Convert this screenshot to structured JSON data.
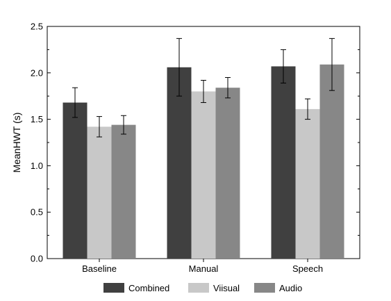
{
  "chart_data": {
    "type": "bar",
    "categories": [
      "Baseline",
      "Manual",
      "Speech"
    ],
    "series": [
      {
        "name": "Combined",
        "color": "#404040",
        "values": [
          1.68,
          2.06,
          2.07
        ],
        "errors": [
          0.16,
          0.31,
          0.18
        ]
      },
      {
        "name": "Viisual",
        "color": "#c8c8c8",
        "values": [
          1.42,
          1.8,
          1.61
        ],
        "errors": [
          0.11,
          0.12,
          0.11
        ]
      },
      {
        "name": "Audio",
        "color": "#878787",
        "values": [
          1.44,
          1.84,
          2.09
        ],
        "errors": [
          0.1,
          0.11,
          0.28
        ]
      }
    ],
    "title": "",
    "xlabel": "",
    "ylabel": "MeanHWT (s)",
    "ylim": [
      0,
      2.5
    ],
    "yticks": [
      "0.0",
      "0.5",
      "1.0",
      "1.5",
      "2.0",
      "2.5"
    ],
    "grid": false,
    "legend_position": "bottom"
  }
}
